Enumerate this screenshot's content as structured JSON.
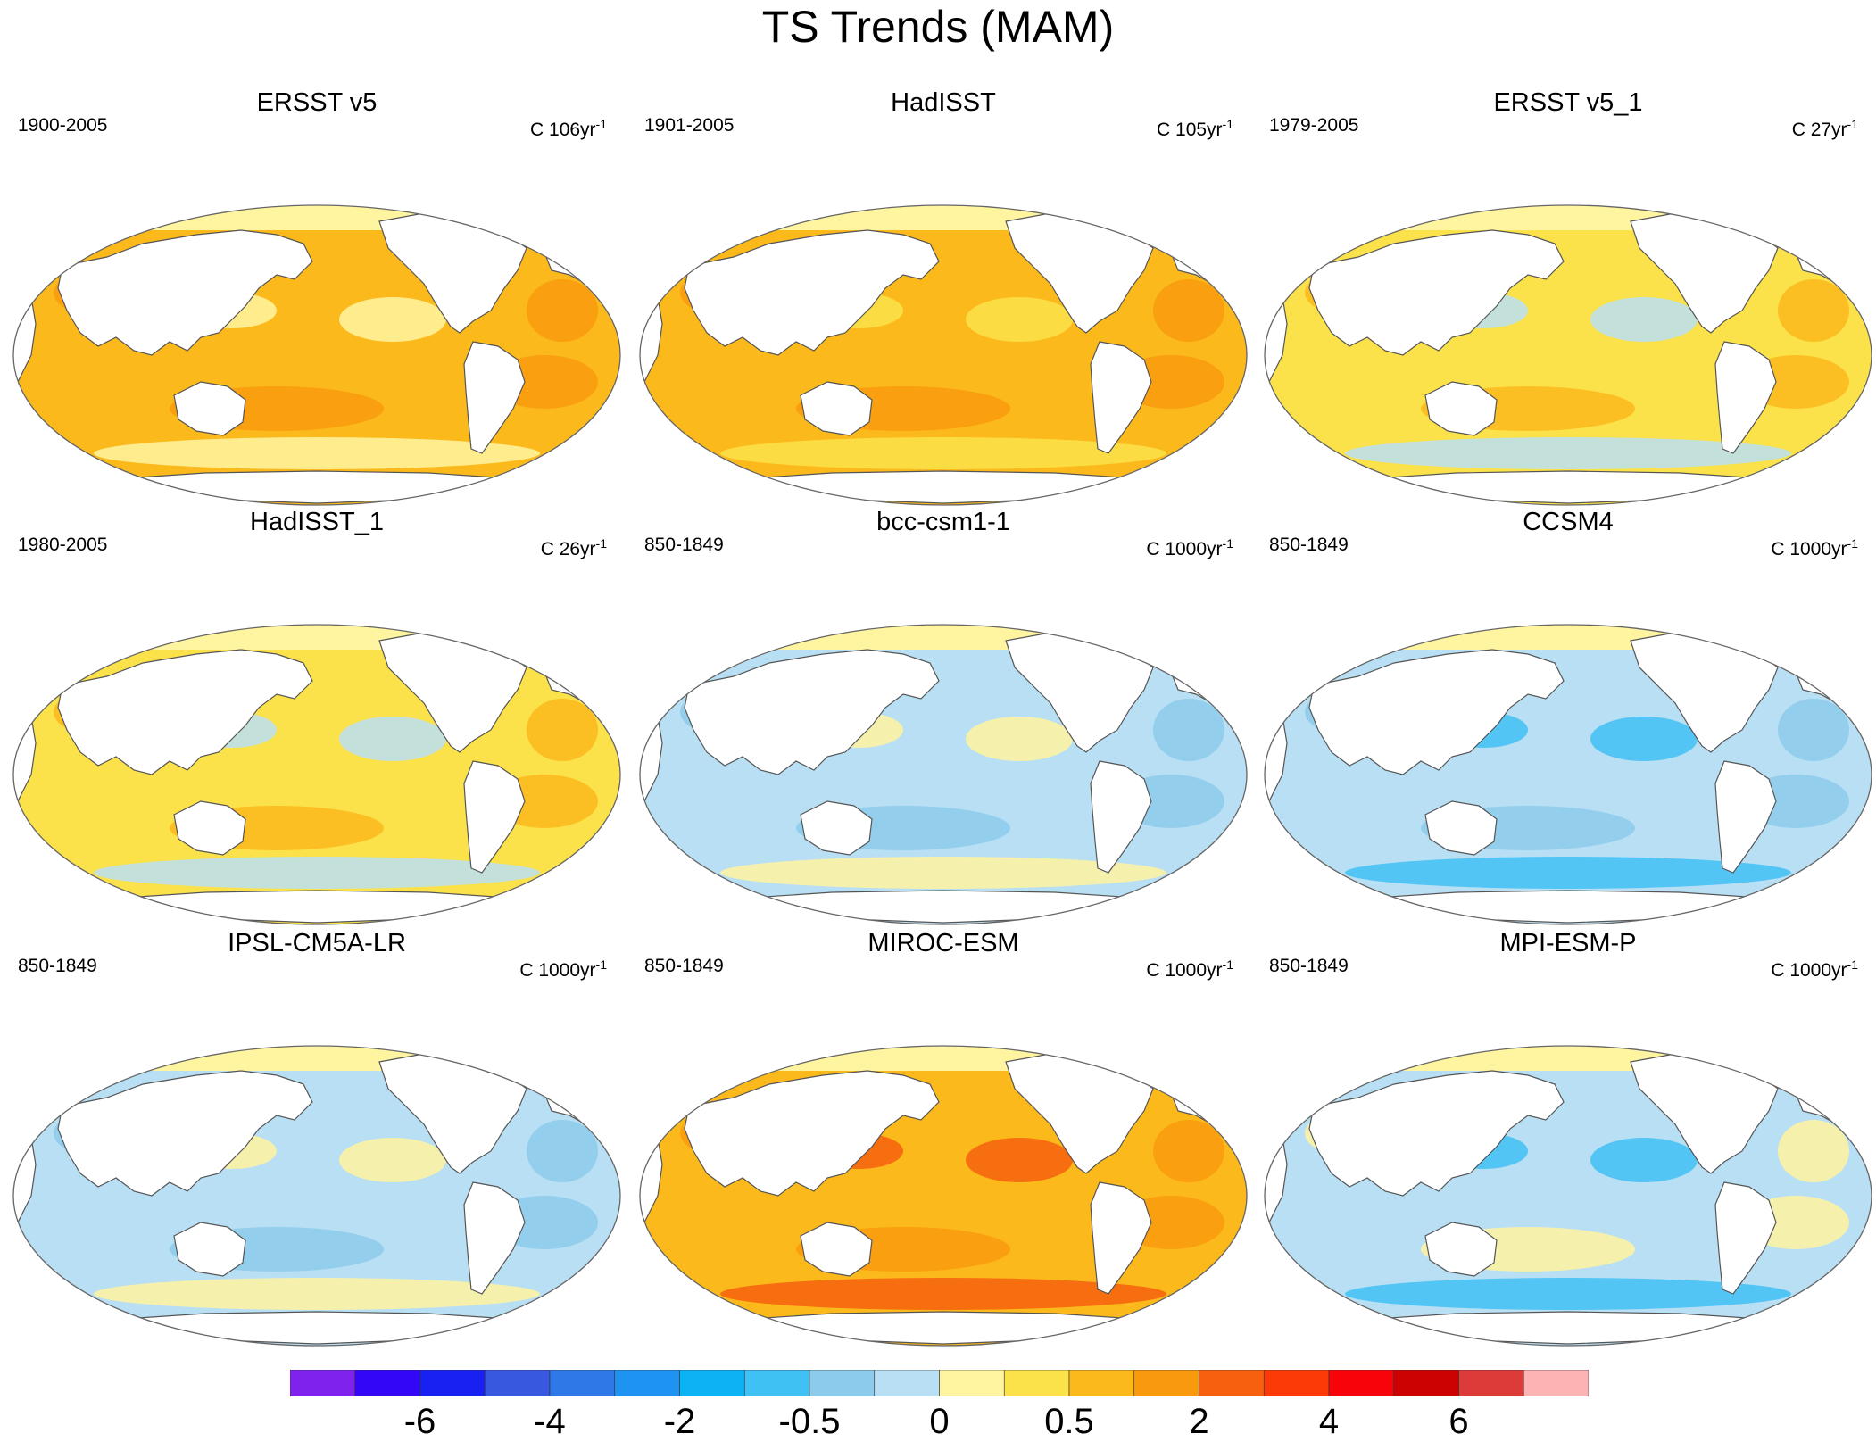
{
  "title": "TS Trends (MAM)",
  "panels": [
    {
      "title": "ERSST v5",
      "period": "1900-2005",
      "units_prefix": "C ",
      "units_value": "106yr",
      "units_exp": "-1",
      "dominant": "#FBB91C",
      "accent": "#F99A0E",
      "secondary": "#FFF5A0"
    },
    {
      "title": "HadISST",
      "period": "1901-2005",
      "units_prefix": "C ",
      "units_value": "105yr",
      "units_exp": "-1",
      "dominant": "#FBB91C",
      "accent": "#F99A0E",
      "secondary": "#FCE24A"
    },
    {
      "title": "ERSST v5_1",
      "period": "1979-2005",
      "units_prefix": "C ",
      "units_value": "27yr",
      "units_exp": "-1",
      "dominant": "#FCE24A",
      "accent": "#FBB91C",
      "secondary": "#B8DFF3"
    },
    {
      "title": "HadISST_1",
      "period": "1980-2005",
      "units_prefix": "C ",
      "units_value": "26yr",
      "units_exp": "-1",
      "dominant": "#FCE24A",
      "accent": "#FBB91C",
      "secondary": "#B8DFF3"
    },
    {
      "title": "bcc-csm1-1",
      "period": "850-1849",
      "units_prefix": "C ",
      "units_value": "1000yr",
      "units_exp": "-1",
      "dominant": "#B8DFF3",
      "accent": "#8CCBEB",
      "secondary": "#FFF5A0"
    },
    {
      "title": "CCSM4",
      "period": "850-1849",
      "units_prefix": "C ",
      "units_value": "1000yr",
      "units_exp": "-1",
      "dominant": "#B8DFF3",
      "accent": "#8CCBEB",
      "secondary": "#3FC1F4"
    },
    {
      "title": "IPSL-CM5A-LR",
      "period": "850-1849",
      "units_prefix": "C ",
      "units_value": "1000yr",
      "units_exp": "-1",
      "dominant": "#B8DFF3",
      "accent": "#8CCBEB",
      "secondary": "#FFF5A0"
    },
    {
      "title": "MIROC-ESM",
      "period": "850-1849",
      "units_prefix": "C ",
      "units_value": "1000yr",
      "units_exp": "-1",
      "dominant": "#FBB91C",
      "accent": "#F99A0E",
      "secondary": "#F6600E"
    },
    {
      "title": "MPI-ESM-P",
      "period": "850-1849",
      "units_prefix": "C ",
      "units_value": "1000yr",
      "units_exp": "-1",
      "dominant": "#B8DFF3",
      "accent": "#FFF5A0",
      "secondary": "#3FC1F4"
    }
  ],
  "colorbar": {
    "colors": [
      "#8022EE",
      "#3306F5",
      "#1920F2",
      "#3858E0",
      "#2F78E8",
      "#1E93F2",
      "#0DB2F4",
      "#3FC1F4",
      "#8CCBEB",
      "#B8DFF3",
      "#FFF5A0",
      "#FCE24A",
      "#FBB91C",
      "#F99A0E",
      "#F6600E",
      "#FB3A08",
      "#F7040A",
      "#CC0202",
      "#DD3A3A",
      "#FDB3B3"
    ],
    "labels": [
      "-6",
      "-4",
      "-2",
      "-0.5",
      "0",
      "0.5",
      "2",
      "4",
      "6"
    ]
  }
}
